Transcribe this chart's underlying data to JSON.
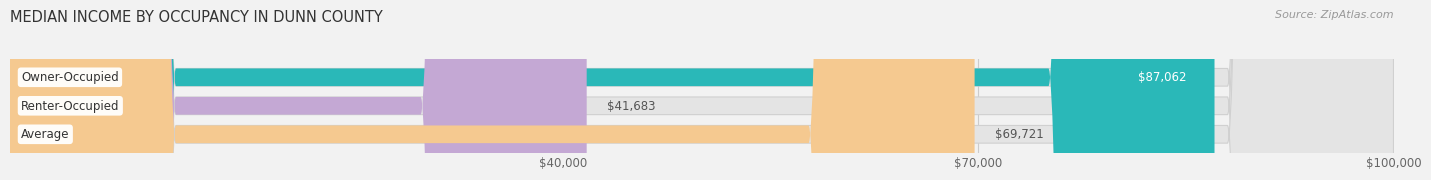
{
  "title": "MEDIAN INCOME BY OCCUPANCY IN DUNN COUNTY",
  "source": "Source: ZipAtlas.com",
  "categories": [
    "Owner-Occupied",
    "Renter-Occupied",
    "Average"
  ],
  "values": [
    87062,
    41683,
    69721
  ],
  "bar_colors": [
    "#2ab8b8",
    "#c4a8d4",
    "#f5c990"
  ],
  "bar_label_colors": [
    "#ffffff",
    "#555555",
    "#555555"
  ],
  "bar_labels": [
    "$87,062",
    "$41,683",
    "$69,721"
  ],
  "xlim": [
    0,
    100000
  ],
  "xstart": 0,
  "xticks": [
    40000,
    70000,
    100000
  ],
  "xtick_labels": [
    "$40,000",
    "$70,000",
    "$100,000"
  ],
  "background_color": "#f2f2f2",
  "bar_bg_color": "#e4e4e4",
  "title_fontsize": 10.5,
  "label_fontsize": 8.5,
  "source_fontsize": 8,
  "cat_fontsize": 8.5
}
